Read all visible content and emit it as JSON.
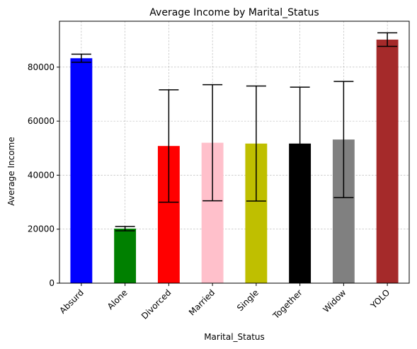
{
  "chart_data": {
    "type": "bar",
    "title": "Average Income by Marital_Status",
    "xlabel": "Marital_Status",
    "ylabel": "Average Income",
    "categories": [
      "Absurd",
      "Alone",
      "Divorced",
      "Married",
      "Single",
      "Together",
      "Widow",
      "YOLO"
    ],
    "values": [
      83300,
      20200,
      50800,
      52000,
      51700,
      51700,
      53200,
      90200
    ],
    "error": [
      1500,
      800,
      20800,
      21500,
      21300,
      20900,
      21500,
      2500
    ],
    "colors": [
      "#0000ff",
      "#008000",
      "#ff0000",
      "#ffc0cb",
      "#bfbf00",
      "#000000",
      "#808080",
      "#a52a2a"
    ],
    "ylim": [
      0,
      97000
    ],
    "yticks": [
      0,
      20000,
      40000,
      60000,
      80000
    ],
    "ytick_labels": [
      "0",
      "20000",
      "40000",
      "60000",
      "80000"
    ],
    "grid": true
  }
}
